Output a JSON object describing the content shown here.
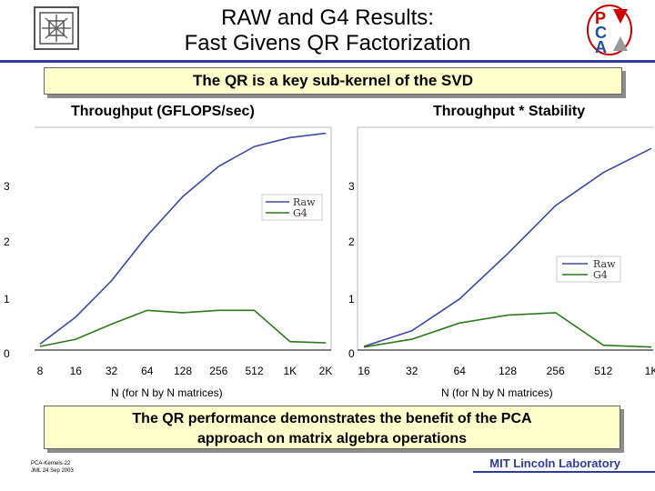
{
  "slide": {
    "title_line1": "RAW and G4 Results:",
    "title_line2": "Fast Givens QR Factorization",
    "subtitle": "The QR is a key sub-kernel of the SVD",
    "bottom_text_line1": "The QR performance demonstrates the benefit of the PCA",
    "bottom_text_line2": "approach on matrix algebra operations",
    "footer_line1": "PCA-Kernels-22",
    "footer_line2": "JML 24 Sep 2003",
    "lab": "MIT Lincoln Laboratory",
    "logo_letters": [
      "P",
      "C",
      "A"
    ]
  },
  "colors": {
    "raw": "#3b4aa6",
    "g4": "#2c7a1c",
    "accent": "#2e3d9c",
    "box": "#ffffcc"
  },
  "chart_data": [
    {
      "type": "line",
      "title": "Throughput (GFLOPS/sec)",
      "xlabel": "N (for N by N matrices)",
      "ylabel": "",
      "categories": [
        "8",
        "16",
        "32",
        "64",
        "128",
        "256",
        "512",
        "1K",
        "2K"
      ],
      "x": [
        8,
        16,
        32,
        64,
        128,
        256,
        512,
        1024,
        2048
      ],
      "ylim": [
        0,
        3.7
      ],
      "yticks": [
        0,
        1,
        2,
        3
      ],
      "legend": [
        "Raw",
        "G4"
      ],
      "legend_position": "upper-right",
      "series": [
        {
          "name": "Raw",
          "values": [
            0.1,
            0.55,
            1.15,
            1.9,
            2.55,
            3.05,
            3.38,
            3.53,
            3.6
          ]
        },
        {
          "name": "G4",
          "values": [
            0.06,
            0.18,
            0.43,
            0.66,
            0.62,
            0.66,
            0.66,
            0.14,
            0.12
          ]
        }
      ]
    },
    {
      "type": "line",
      "title": "Throughput * Stability",
      "xlabel": "N (for N by N matrices)",
      "ylabel": "",
      "categories": [
        "16",
        "32",
        "64",
        "128",
        "256",
        "512",
        "1K"
      ],
      "x": [
        16,
        32,
        64,
        128,
        256,
        512,
        1024
      ],
      "ylim": [
        0,
        3.7
      ],
      "yticks": [
        0,
        1,
        2,
        3
      ],
      "legend": [
        "Raw",
        "G4"
      ],
      "legend_position": "middle-right",
      "series": [
        {
          "name": "Raw",
          "values": [
            0.06,
            0.32,
            0.85,
            1.6,
            2.4,
            2.95,
            3.35
          ]
        },
        {
          "name": "G4",
          "values": [
            0.05,
            0.18,
            0.45,
            0.58,
            0.62,
            0.08,
            0.05
          ]
        }
      ]
    }
  ]
}
